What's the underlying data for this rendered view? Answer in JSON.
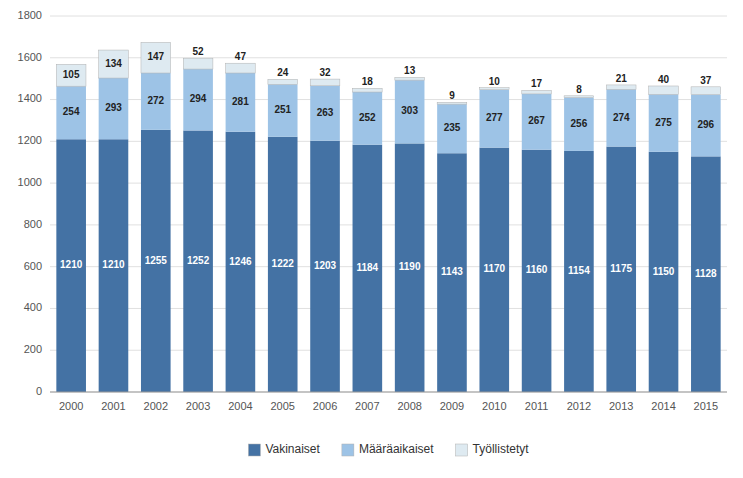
{
  "chart_data": {
    "type": "bar",
    "stacked": true,
    "categories": [
      "2000",
      "2001",
      "2002",
      "2003",
      "2004",
      "2005",
      "2006",
      "2007",
      "2008",
      "2009",
      "2010",
      "2011",
      "2012",
      "2013",
      "2014",
      "2015"
    ],
    "series": [
      {
        "name": "Vakinaiset",
        "color": "#4472A4",
        "values": [
          1210,
          1210,
          1255,
          1252,
          1246,
          1222,
          1203,
          1184,
          1190,
          1143,
          1170,
          1160,
          1154,
          1175,
          1150,
          1128
        ]
      },
      {
        "name": "Määräaikaiset",
        "color": "#9DC3E6",
        "values": [
          254,
          293,
          272,
          294,
          281,
          251,
          263,
          252,
          303,
          235,
          277,
          267,
          256,
          274,
          275,
          296
        ]
      },
      {
        "name": "Työllistetyt",
        "color": "#DEEAF1",
        "values": [
          105,
          134,
          147,
          52,
          47,
          24,
          32,
          18,
          13,
          9,
          10,
          17,
          8,
          21,
          40,
          37
        ]
      }
    ],
    "ylim": [
      0,
      1800
    ],
    "yticks": [
      0,
      200,
      400,
      600,
      800,
      1000,
      1200,
      1400,
      1600,
      1800
    ],
    "grid": true,
    "data_labels": true,
    "legend": "bottom"
  }
}
